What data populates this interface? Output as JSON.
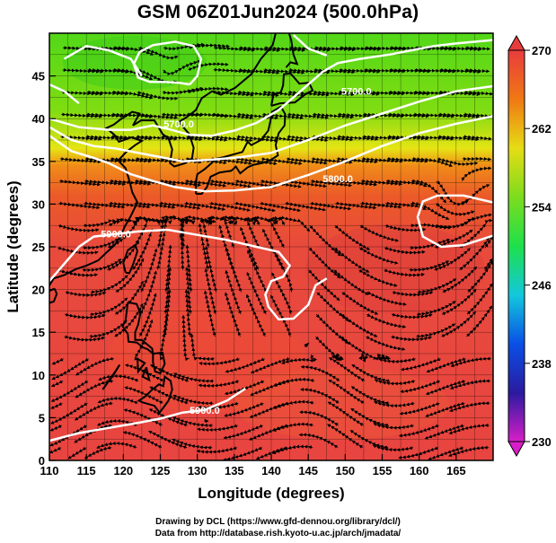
{
  "title": "GSM 06Z01Jun2024 (500.0hPa)",
  "credits": [
    "Drawing by DCL (https://www.gfd-dennou.org/library/dcl/)",
    "Data from http://database.rish.kyoto-u.ac.jp/arch/jmadata/"
  ],
  "map": {
    "xlabel": "Longitude (degrees)",
    "ylabel": "Latitude  (degrees)",
    "xlim": [
      110,
      170
    ],
    "ylim": [
      0,
      50
    ],
    "xticks": [
      110,
      115,
      120,
      125,
      130,
      135,
      140,
      145,
      150,
      155,
      160,
      165
    ],
    "yticks": [
      0,
      5,
      10,
      15,
      20,
      25,
      30,
      35,
      40,
      45
    ],
    "contour_labels": [
      {
        "text": "5700.0",
        "lon": 127.5,
        "lat": 39.4
      },
      {
        "text": "5700.0",
        "lon": 151.5,
        "lat": 43.2
      },
      {
        "text": "5800.0",
        "lon": 149.0,
        "lat": 33.0
      },
      {
        "text": "5900.0",
        "lon": 119.0,
        "lat": 26.5
      },
      {
        "text": "5900.0",
        "lon": 131.0,
        "lat": 5.9
      }
    ]
  },
  "colorbar": {
    "min": 230,
    "max": 270,
    "tick_labels": [
      "270",
      "262",
      "254",
      "246",
      "238",
      "230"
    ],
    "colors": [
      "#d81ec8",
      "#2a1aa0",
      "#0a50e6",
      "#13c8dc",
      "#1ee04a",
      "#7ddc1e",
      "#e6dc14",
      "#f07814",
      "#e83c3c"
    ]
  }
}
